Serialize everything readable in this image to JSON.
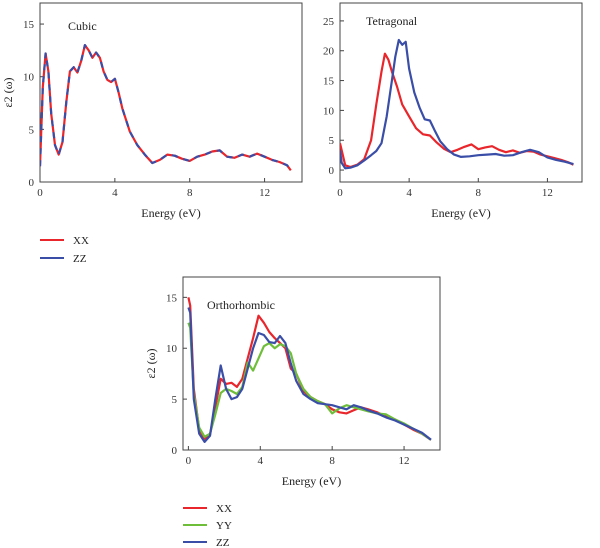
{
  "colors": {
    "XX": "#e8262b",
    "YY": "#6fbe3a",
    "ZZ": "#3a4ea8",
    "frame": "#444444"
  },
  "chart_data": [
    {
      "type": "line",
      "title": "Cubic",
      "xlabel": "Energy (eV)",
      "ylabel": "ε2 (ω)",
      "xlim": [
        0,
        14
      ],
      "ylim": [
        0,
        17
      ],
      "xticks": [
        0,
        4,
        8,
        12
      ],
      "yticks": [
        0,
        5,
        10,
        15
      ],
      "series": [
        {
          "name": "XX",
          "x": [
            0,
            0.15,
            0.3,
            0.45,
            0.6,
            0.8,
            1.0,
            1.2,
            1.4,
            1.6,
            1.8,
            2.0,
            2.2,
            2.4,
            2.6,
            2.8,
            3.0,
            3.2,
            3.4,
            3.6,
            3.8,
            4.0,
            4.2,
            4.4,
            4.8,
            5.2,
            5.6,
            6.0,
            6.4,
            6.8,
            7.2,
            7.6,
            8.0,
            8.4,
            8.8,
            9.2,
            9.6,
            10.0,
            10.4,
            10.8,
            11.2,
            11.6,
            12.0,
            12.4,
            12.8,
            13.2,
            13.4
          ],
          "y": [
            1.5,
            9.0,
            12.2,
            10.5,
            6.5,
            3.5,
            2.6,
            3.8,
            7.5,
            10.5,
            10.9,
            10.4,
            11.5,
            13.0,
            12.5,
            11.8,
            12.3,
            11.8,
            10.5,
            9.7,
            9.5,
            9.8,
            8.5,
            7.0,
            4.8,
            3.5,
            2.6,
            1.8,
            2.1,
            2.6,
            2.5,
            2.2,
            2.0,
            2.4,
            2.6,
            2.9,
            3.0,
            2.4,
            2.3,
            2.6,
            2.4,
            2.7,
            2.4,
            2.1,
            1.9,
            1.6,
            1.1
          ]
        },
        {
          "name": "ZZ",
          "x": [
            0,
            0.15,
            0.3,
            0.45,
            0.6,
            0.8,
            1.0,
            1.2,
            1.4,
            1.6,
            1.8,
            2.0,
            2.2,
            2.4,
            2.6,
            2.8,
            3.0,
            3.2,
            3.4,
            3.6,
            3.8,
            4.0,
            4.2,
            4.4,
            4.8,
            5.2,
            5.6,
            6.0,
            6.4,
            6.8,
            7.2,
            7.6,
            8.0,
            8.4,
            8.8,
            9.2,
            9.6,
            10.0,
            10.4,
            10.8,
            11.2,
            11.6,
            12.0,
            12.4,
            12.8,
            13.2,
            13.4
          ],
          "y": [
            1.5,
            9.0,
            12.2,
            10.5,
            6.5,
            3.5,
            2.6,
            3.8,
            7.5,
            10.5,
            10.9,
            10.4,
            11.5,
            13.0,
            12.5,
            11.8,
            12.3,
            11.8,
            10.5,
            9.7,
            9.5,
            9.8,
            8.5,
            7.0,
            4.8,
            3.5,
            2.6,
            1.8,
            2.1,
            2.6,
            2.5,
            2.2,
            2.0,
            2.4,
            2.6,
            2.9,
            3.0,
            2.4,
            2.3,
            2.6,
            2.4,
            2.7,
            2.4,
            2.1,
            1.9,
            1.6,
            1.1
          ]
        }
      ]
    },
    {
      "type": "line",
      "title": "Tetragonal",
      "xlabel": "Energy (eV)",
      "ylabel": "",
      "xlim": [
        0,
        14
      ],
      "ylim": [
        -2,
        28
      ],
      "xticks": [
        0,
        4,
        8,
        12
      ],
      "yticks": [
        0,
        5,
        10,
        15,
        20,
        25
      ],
      "series": [
        {
          "name": "XX",
          "x": [
            0,
            0.1,
            0.3,
            0.6,
            1.0,
            1.4,
            1.8,
            2.1,
            2.4,
            2.6,
            2.8,
            3.0,
            3.3,
            3.6,
            4.0,
            4.4,
            4.8,
            5.2,
            5.6,
            6.0,
            6.4,
            6.8,
            7.2,
            7.6,
            8.0,
            8.4,
            8.8,
            9.2,
            9.6,
            10.0,
            10.4,
            10.8,
            11.2,
            11.6,
            12.0,
            12.4,
            12.8,
            13.2,
            13.5
          ],
          "y": [
            4.5,
            3.3,
            0.8,
            0.5,
            0.9,
            1.8,
            5.0,
            11.0,
            16.5,
            19.5,
            18.5,
            16.5,
            14.0,
            11.0,
            9.0,
            7.0,
            6.0,
            5.8,
            4.6,
            3.6,
            3.0,
            3.4,
            3.9,
            4.3,
            3.5,
            3.8,
            4.0,
            3.4,
            3.0,
            3.3,
            2.9,
            3.2,
            3.1,
            2.6,
            2.3,
            2.0,
            1.7,
            1.3,
            0.9
          ]
        },
        {
          "name": "ZZ",
          "x": [
            0,
            0.1,
            0.3,
            0.6,
            1.0,
            1.4,
            1.8,
            2.1,
            2.4,
            2.7,
            3.0,
            3.2,
            3.4,
            3.6,
            3.8,
            4.0,
            4.3,
            4.6,
            4.9,
            5.2,
            5.5,
            5.8,
            6.2,
            6.6,
            7.0,
            7.5,
            8.0,
            8.5,
            9.0,
            9.5,
            10.0,
            10.5,
            11.0,
            11.5,
            12.0,
            12.5,
            13.0,
            13.5
          ],
          "y": [
            3.3,
            1.2,
            0.3,
            0.4,
            0.8,
            1.6,
            2.5,
            3.2,
            4.5,
            9.0,
            15.0,
            19.0,
            21.8,
            21.0,
            21.5,
            17.0,
            13.0,
            10.5,
            8.5,
            8.3,
            6.5,
            4.8,
            3.5,
            2.6,
            2.2,
            2.3,
            2.5,
            2.6,
            2.7,
            2.4,
            2.5,
            3.0,
            3.4,
            3.0,
            2.1,
            1.7,
            1.4,
            1.0
          ]
        }
      ]
    },
    {
      "type": "line",
      "title": "Orthorhombic",
      "xlabel": "Energy (eV)",
      "ylabel": "ε2 (ω)",
      "xlim": [
        -0.3,
        14
      ],
      "ylim": [
        0,
        17
      ],
      "xticks": [
        0,
        4,
        8,
        12
      ],
      "yticks": [
        0,
        5,
        10,
        15
      ],
      "series": [
        {
          "name": "XX",
          "x": [
            0,
            0.1,
            0.3,
            0.6,
            0.9,
            1.2,
            1.5,
            1.8,
            2.1,
            2.4,
            2.7,
            3.0,
            3.3,
            3.6,
            3.9,
            4.2,
            4.5,
            4.8,
            5.1,
            5.4,
            5.7,
            6.0,
            6.4,
            6.8,
            7.2,
            7.6,
            8.0,
            8.4,
            8.8,
            9.2,
            9.6,
            10.0,
            10.5,
            11.0,
            11.5,
            12.0,
            12.5,
            13.0,
            13.5
          ],
          "y": [
            15.0,
            14.2,
            6.0,
            2.0,
            1.1,
            1.5,
            4.2,
            7.0,
            6.5,
            6.6,
            6.2,
            7.0,
            9.0,
            11.0,
            13.2,
            12.5,
            11.6,
            11.0,
            10.5,
            10.0,
            8.0,
            7.5,
            5.8,
            5.2,
            4.8,
            4.5,
            4.0,
            3.7,
            3.6,
            3.9,
            4.2,
            4.0,
            3.7,
            3.3,
            3.0,
            2.5,
            2.0,
            1.6,
            1.0
          ]
        },
        {
          "name": "YY",
          "x": [
            0,
            0.1,
            0.3,
            0.6,
            0.9,
            1.2,
            1.5,
            1.8,
            2.1,
            2.4,
            2.7,
            3.0,
            3.3,
            3.6,
            3.9,
            4.2,
            4.5,
            4.8,
            5.1,
            5.4,
            5.7,
            6.0,
            6.4,
            6.8,
            7.2,
            7.6,
            8.0,
            8.4,
            8.8,
            9.2,
            9.6,
            10.0,
            10.5,
            11.0,
            11.5,
            12.0,
            12.5,
            13.0,
            13.5
          ],
          "y": [
            12.5,
            12.0,
            5.5,
            2.2,
            1.3,
            1.6,
            3.5,
            5.6,
            6.0,
            5.8,
            5.5,
            6.2,
            8.6,
            7.8,
            9.0,
            10.2,
            10.5,
            10.0,
            10.4,
            10.2,
            9.5,
            7.5,
            6.0,
            5.2,
            4.8,
            4.5,
            3.6,
            4.1,
            4.4,
            4.2,
            4.0,
            3.8,
            3.6,
            3.5,
            3.0,
            2.6,
            2.1,
            1.6,
            1.0
          ]
        },
        {
          "name": "ZZ",
          "x": [
            0,
            0.1,
            0.3,
            0.6,
            0.9,
            1.2,
            1.5,
            1.8,
            2.1,
            2.4,
            2.7,
            3.0,
            3.3,
            3.6,
            3.9,
            4.2,
            4.5,
            4.8,
            5.1,
            5.4,
            5.7,
            6.0,
            6.4,
            6.8,
            7.2,
            7.6,
            8.0,
            8.4,
            8.8,
            9.2,
            9.6,
            10.0,
            10.5,
            11.0,
            11.5,
            12.0,
            12.5,
            13.0,
            13.5
          ],
          "y": [
            14.0,
            13.5,
            5.0,
            1.6,
            0.8,
            1.4,
            5.0,
            8.3,
            6.0,
            5.0,
            5.2,
            6.0,
            8.0,
            10.0,
            11.5,
            11.3,
            10.6,
            10.5,
            11.2,
            10.5,
            8.5,
            6.8,
            5.5,
            5.0,
            4.6,
            4.5,
            4.4,
            4.2,
            4.0,
            4.4,
            4.2,
            3.9,
            3.6,
            3.2,
            2.9,
            2.5,
            2.1,
            1.7,
            1.0
          ]
        }
      ]
    }
  ]
}
